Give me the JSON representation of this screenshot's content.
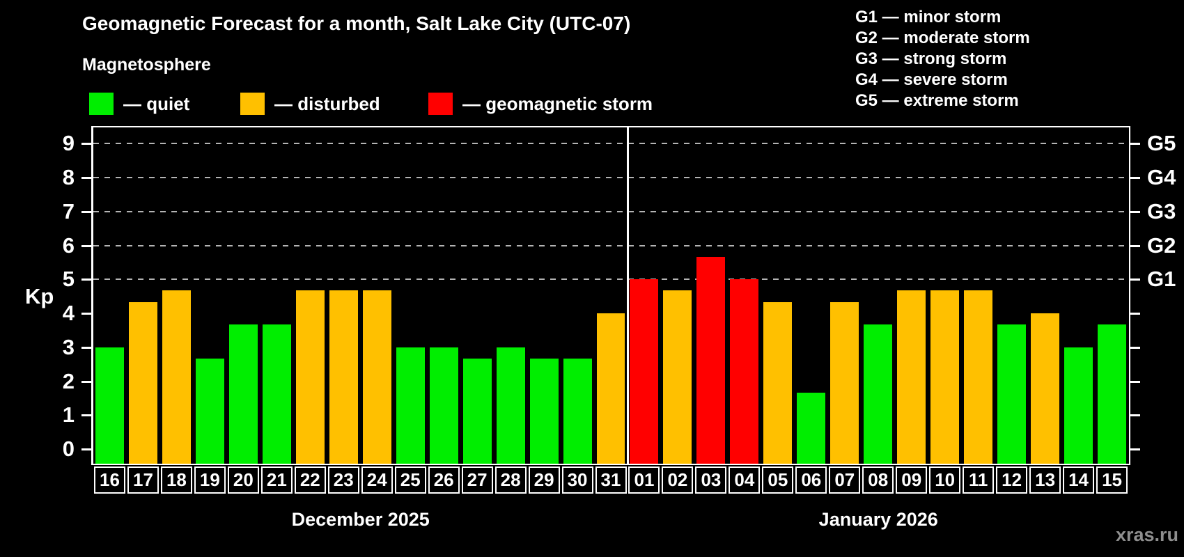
{
  "title": "Geomagnetic Forecast for a month, Salt Lake City (UTC-07)",
  "subtitle": "Magnetosphere",
  "legend": [
    {
      "status": "quiet",
      "label": "— quiet",
      "color": "#00ee00"
    },
    {
      "status": "disturbed",
      "label": "— disturbed",
      "color": "#ffc000"
    },
    {
      "status": "storm",
      "label": "— geomagnetic storm",
      "color": "#ff0000"
    }
  ],
  "g_scale_legend": [
    "G1 — minor storm",
    "G2 — moderate storm",
    "G3 — strong storm",
    "G4 — severe storm",
    "G5 — extreme storm"
  ],
  "watermark": "xras.ru",
  "chart_data": {
    "type": "bar",
    "ylabel": "Kp",
    "ylim": [
      0,
      9.5
    ],
    "yticks": [
      0,
      1,
      2,
      3,
      4,
      5,
      6,
      7,
      8,
      9
    ],
    "gridlines_at_kp": [
      5,
      6,
      7,
      8,
      9
    ],
    "grid_color": "#b4b4b4",
    "legend_position": "top",
    "right_axis_labels": [
      {
        "kp": 5,
        "label": "G1"
      },
      {
        "kp": 6,
        "label": "G2"
      },
      {
        "kp": 7,
        "label": "G3"
      },
      {
        "kp": 8,
        "label": "G4"
      },
      {
        "kp": 9,
        "label": "G5"
      }
    ],
    "status_colors": {
      "quiet": "#00ee00",
      "disturbed": "#ffc000",
      "storm": "#ff0000"
    },
    "months": [
      {
        "label": "December 2025",
        "days": [
          {
            "day": "16",
            "kp": 3.0,
            "status": "quiet"
          },
          {
            "day": "17",
            "kp": 4.33,
            "status": "disturbed"
          },
          {
            "day": "18",
            "kp": 4.67,
            "status": "disturbed"
          },
          {
            "day": "19",
            "kp": 2.67,
            "status": "quiet"
          },
          {
            "day": "20",
            "kp": 3.67,
            "status": "quiet"
          },
          {
            "day": "21",
            "kp": 3.67,
            "status": "quiet"
          },
          {
            "day": "22",
            "kp": 4.67,
            "status": "disturbed"
          },
          {
            "day": "23",
            "kp": 4.67,
            "status": "disturbed"
          },
          {
            "day": "24",
            "kp": 4.67,
            "status": "disturbed"
          },
          {
            "day": "25",
            "kp": 3.0,
            "status": "quiet"
          },
          {
            "day": "26",
            "kp": 3.0,
            "status": "quiet"
          },
          {
            "day": "27",
            "kp": 2.67,
            "status": "quiet"
          },
          {
            "day": "28",
            "kp": 3.0,
            "status": "quiet"
          },
          {
            "day": "29",
            "kp": 2.67,
            "status": "quiet"
          },
          {
            "day": "30",
            "kp": 2.67,
            "status": "quiet"
          },
          {
            "day": "31",
            "kp": 4.0,
            "status": "disturbed"
          }
        ]
      },
      {
        "label": "January 2026",
        "days": [
          {
            "day": "01",
            "kp": 5.0,
            "status": "storm"
          },
          {
            "day": "02",
            "kp": 4.67,
            "status": "disturbed"
          },
          {
            "day": "03",
            "kp": 5.67,
            "status": "storm"
          },
          {
            "day": "04",
            "kp": 5.0,
            "status": "storm"
          },
          {
            "day": "05",
            "kp": 4.33,
            "status": "disturbed"
          },
          {
            "day": "06",
            "kp": 1.67,
            "status": "quiet"
          },
          {
            "day": "07",
            "kp": 4.33,
            "status": "disturbed"
          },
          {
            "day": "08",
            "kp": 3.67,
            "status": "quiet"
          },
          {
            "day": "09",
            "kp": 4.67,
            "status": "disturbed"
          },
          {
            "day": "10",
            "kp": 4.67,
            "status": "disturbed"
          },
          {
            "day": "11",
            "kp": 4.67,
            "status": "disturbed"
          },
          {
            "day": "12",
            "kp": 3.67,
            "status": "quiet"
          },
          {
            "day": "13",
            "kp": 4.0,
            "status": "disturbed"
          },
          {
            "day": "14",
            "kp": 3.0,
            "status": "quiet"
          },
          {
            "day": "15",
            "kp": 3.67,
            "status": "quiet"
          }
        ]
      }
    ]
  }
}
